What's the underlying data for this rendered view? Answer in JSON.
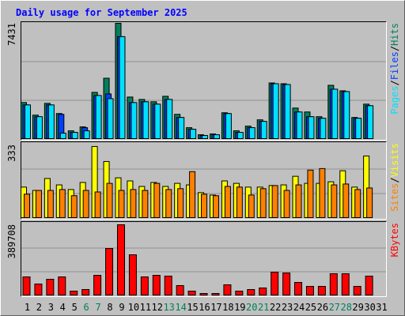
{
  "chart_data": {
    "type": "bar",
    "title": "Daily usage for September 2025",
    "categories": [
      "1",
      "2",
      "3",
      "4",
      "5",
      "6",
      "7",
      "8",
      "9",
      "10",
      "11",
      "12",
      "13",
      "14",
      "15",
      "16",
      "17",
      "18",
      "19",
      "20",
      "21",
      "22",
      "23",
      "24",
      "25",
      "26",
      "27",
      "28",
      "29",
      "30",
      "31"
    ],
    "weekends": [
      6,
      7,
      13,
      14,
      20,
      21,
      27,
      28
    ],
    "weekend_color": "#00805c",
    "weekday_color": "#000000",
    "legend_separator": "/",
    "panels": [
      {
        "ylim": [
          0,
          7431
        ],
        "yticks": [
          7431
        ],
        "series": [
          {
            "name": "Hits",
            "color": "#00805c",
            "values": [
              2360,
              1556,
              2309,
              1657,
              552,
              803,
              3012,
              3916,
              7431,
              2711,
              2560,
              2410,
              2761,
              1606,
              753,
              301,
              351,
              1707,
              552,
              853,
              1255,
              3614,
              3564,
              2008,
              1757,
              1456,
              3464,
              3112,
              1406,
              2259,
              0
            ]
          },
          {
            "name": "Files",
            "color": "#0040ff",
            "values": [
              2209,
              1456,
              2209,
              1606,
              452,
              753,
              2811,
              2912,
              6576,
              2359,
              2410,
              2259,
              2560,
              1406,
              653,
              251,
              301,
              1657,
              452,
              753,
              1155,
              3564,
              3514,
              1757,
              1456,
              1355,
              3213,
              3062,
              1355,
              2159,
              0
            ]
          },
          {
            "name": "Pages",
            "color": "#00e0ff",
            "values": [
              2209,
              1456,
              2209,
              402,
              452,
              552,
              2811,
              2610,
              6576,
              2359,
              2410,
              2259,
              2560,
              1406,
              653,
              251,
              301,
              1657,
              452,
              753,
              1155,
              3564,
              3514,
              1757,
              1456,
              1355,
              3213,
              3062,
              1355,
              2159,
              0
            ]
          }
        ]
      },
      {
        "ylim": [
          0,
          333
        ],
        "yticks": [
          333
        ],
        "series": [
          {
            "name": "Visits",
            "color": "#ffff00",
            "values": [
              142,
              127,
              181,
              152,
              131,
              163,
              326,
              258,
              184,
              170,
              145,
              163,
              145,
              159,
              152,
              117,
              106,
              170,
              159,
              142,
              142,
              149,
              152,
              191,
              159,
              159,
              166,
              216,
              142,
              283,
              0
            ]
          },
          {
            "name": "Sites",
            "color": "#ff8000",
            "values": [
              110,
              127,
              127,
              131,
              103,
              127,
              120,
              159,
              127,
              131,
              127,
              159,
              131,
              135,
              212,
              110,
              103,
              145,
              142,
              106,
              135,
              149,
              127,
              152,
              219,
              226,
              152,
              156,
              131,
              138,
              0
            ]
          }
        ]
      },
      {
        "ylim": [
          0,
          389708
        ],
        "yticks": [
          389708
        ],
        "series": [
          {
            "name": "KBytes",
            "color": "#ff0000",
            "values": [
              103922,
              64950,
              90930,
              103922,
              25980,
              34640,
              112580,
              259800,
              389708,
              225160,
              103922,
              112580,
              108250,
              56290,
              25980,
              12990,
              12990,
              60620,
              25980,
              34640,
              43300,
              129900,
              125570,
              73610,
              51960,
              51960,
              121240,
              121240,
              51960,
              108250,
              0
            ]
          }
        ]
      }
    ]
  }
}
